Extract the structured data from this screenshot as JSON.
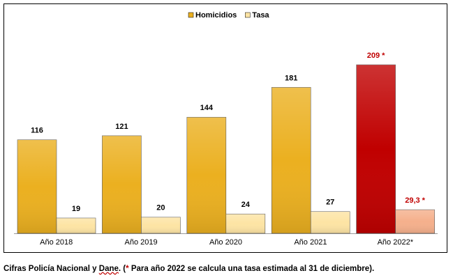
{
  "chart_data": {
    "type": "bar",
    "categories": [
      "Año 2018",
      "Año 2019",
      "Año 2020",
      "Año 2021",
      "Año 2022*"
    ],
    "series": [
      {
        "name": "Homicidios",
        "color": "#ebb020",
        "colors": [
          "#ebb020",
          "#ebb020",
          "#ebb020",
          "#ebb020",
          "#c00000"
        ],
        "values": [
          116,
          121,
          144,
          181,
          209
        ],
        "value_labels": [
          "116",
          "121",
          "144",
          "181",
          "209 *"
        ],
        "label_colors": [
          "#000000",
          "#000000",
          "#000000",
          "#000000",
          "#c00000"
        ]
      },
      {
        "name": "Tasa",
        "color": "#fde4a4",
        "colors": [
          "#fde4a4",
          "#fde4a4",
          "#fde4a4",
          "#fde4a4",
          "#f5b08c"
        ],
        "values": [
          19,
          20,
          24,
          27,
          29.3
        ],
        "value_labels": [
          "19",
          "20",
          "24",
          "27",
          "29,3 *"
        ],
        "label_colors": [
          "#000000",
          "#000000",
          "#000000",
          "#000000",
          "#c00000"
        ]
      }
    ],
    "legend": "top"
  },
  "caption": [
    "Cifras Policía Nacional y ",
    "Dane",
    ". (",
    "*",
    " Para año 2022 se calcula una tasa estimada al 31 de diciembre)."
  ]
}
